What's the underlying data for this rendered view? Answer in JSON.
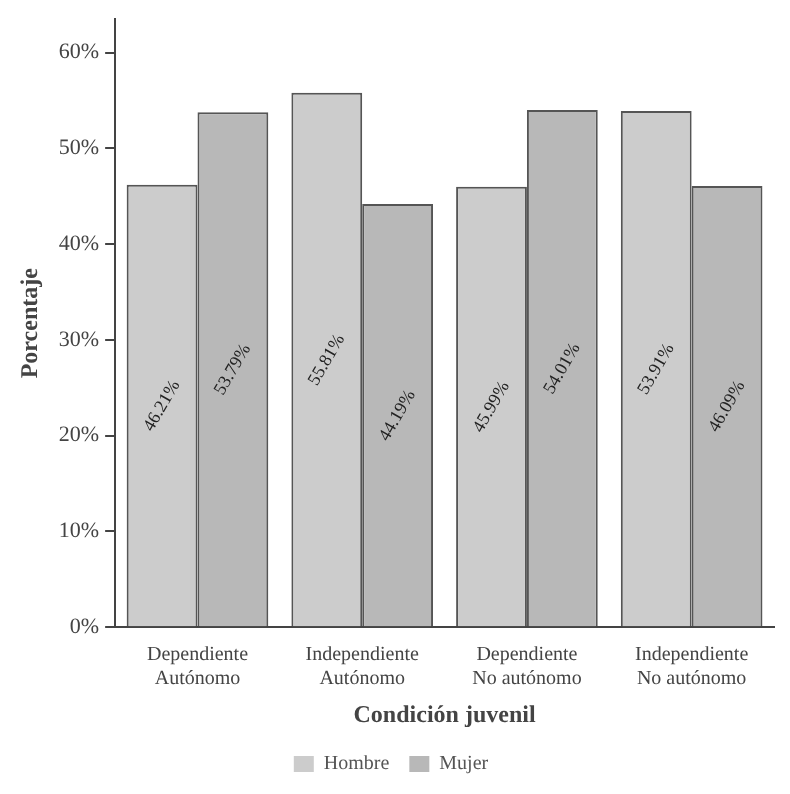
{
  "chart_data": {
    "type": "bar",
    "xlabel": "Condición juvenil",
    "ylabel": "Porcentaje",
    "categories": [
      "Dependiente\nAutónomo",
      "Independiente\nAutónomo",
      "Dependiente\nNo autónomo",
      "Independiente\nNo autónomo"
    ],
    "series": [
      {
        "name": "Hombre",
        "color": "#cccccc",
        "values": [
          46.21,
          55.81,
          45.99,
          53.91
        ],
        "value_labels": [
          "46.21%",
          "55.81%",
          "45.99%",
          "53.91%"
        ]
      },
      {
        "name": "Mujer",
        "color": "#b8b8b8",
        "values": [
          53.79,
          44.19,
          54.01,
          46.09
        ],
        "value_labels": [
          "53.79%",
          "44.19%",
          "54.01%",
          "46.09%"
        ]
      }
    ],
    "ylim": [
      0,
      63.5
    ],
    "yticks": [
      {
        "value": 0,
        "label": "0%"
      },
      {
        "value": 10,
        "label": "10%"
      },
      {
        "value": 20,
        "label": "20%"
      },
      {
        "value": 30,
        "label": "30%"
      },
      {
        "value": 40,
        "label": "40%"
      },
      {
        "value": 50,
        "label": "50%"
      },
      {
        "value": 60,
        "label": "60%"
      }
    ],
    "grid": false,
    "legend": "bottom"
  }
}
